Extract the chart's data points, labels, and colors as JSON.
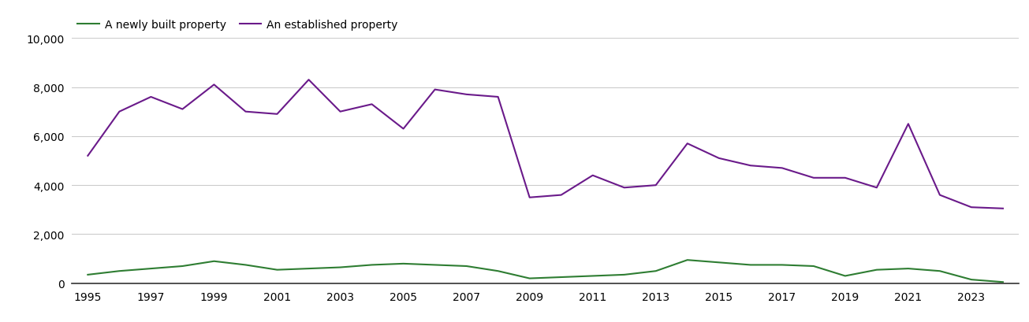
{
  "years": [
    1995,
    1996,
    1997,
    1998,
    1999,
    2000,
    2001,
    2002,
    2003,
    2004,
    2005,
    2006,
    2007,
    2008,
    2009,
    2010,
    2011,
    2012,
    2013,
    2014,
    2015,
    2016,
    2017,
    2018,
    2019,
    2020,
    2021,
    2022,
    2023,
    2024
  ],
  "new_homes": [
    350,
    500,
    600,
    700,
    900,
    750,
    550,
    600,
    650,
    750,
    800,
    750,
    700,
    500,
    200,
    250,
    300,
    350,
    500,
    950,
    850,
    750,
    750,
    700,
    300,
    550,
    600,
    500,
    150,
    50
  ],
  "established_homes": [
    5200,
    7000,
    7600,
    7100,
    8100,
    7000,
    6900,
    8300,
    7000,
    7300,
    6300,
    7900,
    7700,
    7600,
    3500,
    3600,
    4400,
    3900,
    4000,
    5700,
    5100,
    4800,
    4700,
    4300,
    4300,
    3900,
    6500,
    3600,
    3100,
    3050
  ],
  "new_homes_color": "#2e7d32",
  "established_homes_color": "#6a1a8a",
  "new_homes_label": "A newly built property",
  "established_homes_label": "An established property",
  "ylim": [
    0,
    10000
  ],
  "yticks": [
    0,
    2000,
    4000,
    6000,
    8000,
    10000
  ],
  "ytick_labels": [
    "0",
    "2,000",
    "4,000",
    "6,000",
    "8,000",
    "10,000"
  ],
  "xticks": [
    1995,
    1997,
    1999,
    2001,
    2003,
    2005,
    2007,
    2009,
    2011,
    2013,
    2015,
    2017,
    2019,
    2021,
    2023
  ],
  "background_color": "#ffffff",
  "grid_color": "#cccccc",
  "line_width": 1.5,
  "legend_fontsize": 10,
  "tick_fontsize": 10
}
